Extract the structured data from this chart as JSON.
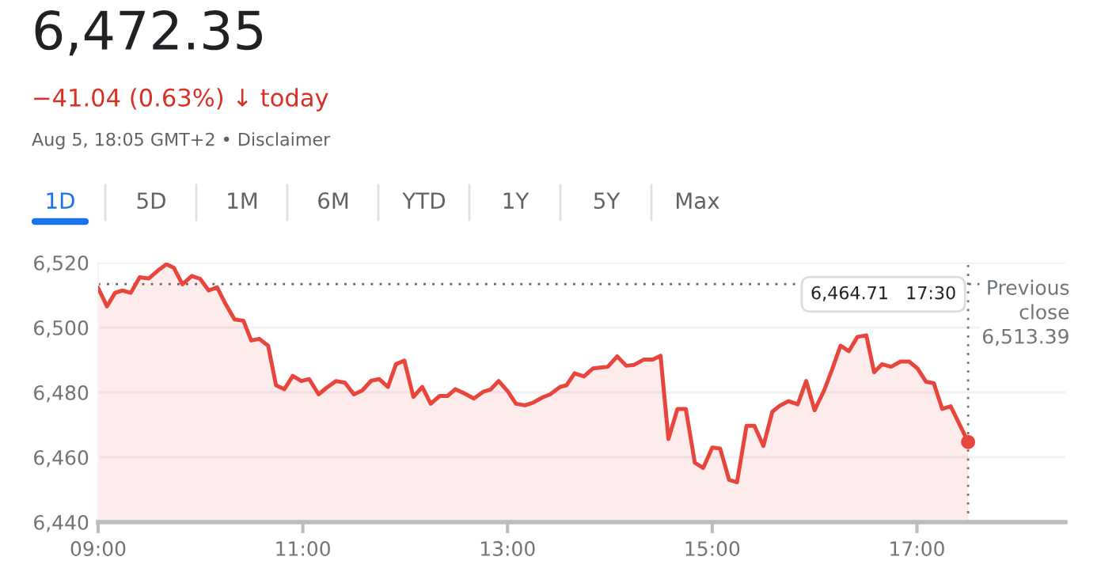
{
  "chart_data": {
    "type": "area",
    "title": "6,472.35",
    "subtitle": "−41.04 (0.63%) ↓ today",
    "annotations": [
      "Aug 5, 18:05 GMT+2 • Disclaimer",
      "6,464.71   17:30",
      "1D",
      "5D",
      "1M",
      "6M",
      "YTD",
      "1Y",
      "5Y",
      "Max"
    ],
    "series": [
      {
        "color": "#e8453c",
        "x": [
          9.0,
          9.087,
          9.165,
          9.236,
          9.319,
          9.406,
          9.493,
          9.586,
          9.668,
          9.74,
          9.823,
          9.915,
          9.997,
          10.08,
          10.162,
          10.244,
          10.332,
          10.419,
          10.496,
          10.573,
          10.661,
          10.738,
          10.82,
          10.902,
          10.985,
          11.062,
          11.154,
          11.231,
          11.324,
          11.411,
          11.499,
          11.581,
          11.668,
          11.745,
          11.832,
          11.91,
          11.992,
          12.08,
          12.167,
          12.249,
          12.337,
          12.414,
          12.491,
          12.578,
          12.671,
          12.763,
          12.835,
          12.913,
          13.005,
          13.082,
          13.17,
          13.247,
          13.339,
          13.416,
          13.515,
          13.577,
          13.655,
          13.747,
          13.835,
          13.979,
          14.072,
          14.16,
          14.237,
          14.33,
          14.418,
          14.495,
          14.572,
          14.66,
          14.742,
          14.83,
          14.912,
          15.0,
          15.077,
          15.165,
          15.242,
          15.335,
          15.412,
          15.5,
          15.588,
          15.665,
          15.747,
          15.835,
          15.918,
          16.0,
          16.093,
          16.17,
          16.253,
          16.335,
          16.418,
          16.505,
          16.582,
          16.66,
          16.747,
          16.84,
          16.923,
          17.005,
          17.088,
          17.165,
          17.247,
          17.33,
          17.5
        ],
        "values": [
          6512.2,
          6506.5,
          6510.7,
          6511.4,
          6510.7,
          6515.5,
          6515.1,
          6517.6,
          6519.5,
          6518.4,
          6513.3,
          6515.9,
          6515.0,
          6511.4,
          6512.4,
          6507.3,
          6502.5,
          6502.1,
          6496.0,
          6496.5,
          6494.4,
          6482.2,
          6481.0,
          6485.1,
          6483.5,
          6484.1,
          6479.4,
          6481.4,
          6483.5,
          6483.0,
          6479.4,
          6480.6,
          6483.6,
          6484.1,
          6481.7,
          6488.7,
          6489.8,
          6478.6,
          6481.7,
          6476.5,
          6478.9,
          6478.9,
          6481.0,
          6479.7,
          6478.1,
          6480.2,
          6480.9,
          6483.5,
          6480.2,
          6476.5,
          6476.0,
          6476.8,
          6478.4,
          6479.4,
          6481.7,
          6482.2,
          6485.9,
          6484.9,
          6487.4,
          6487.9,
          6491.1,
          6488.2,
          6488.5,
          6490.1,
          6490.1,
          6491.3,
          6465.6,
          6474.9,
          6474.9,
          6458.3,
          6456.7,
          6463.0,
          6462.7,
          6453.0,
          6452.3,
          6469.7,
          6469.7,
          6463.5,
          6474.1,
          6476.0,
          6477.3,
          6476.3,
          6483.5,
          6474.5,
          6480.6,
          6487.0,
          6494.4,
          6492.7,
          6497.1,
          6497.6,
          6486.2,
          6488.7,
          6487.9,
          6489.5,
          6489.5,
          6487.4,
          6483.3,
          6482.8,
          6474.9,
          6475.7,
          6464.71
        ]
      },
      {
        "type": "scatter",
        "color": "#e8453c",
        "x": [
          17.5
        ],
        "values": [
          6464.71
        ]
      }
    ],
    "xlim": [
      9,
      18.45
    ],
    "ylim": [
      6440,
      6520
    ],
    "xticks": [
      {
        "value": 9,
        "label": "09:00"
      },
      {
        "value": 11,
        "label": "11:00"
      },
      {
        "value": 13,
        "label": "13:00"
      },
      {
        "value": 15,
        "label": "15:00"
      },
      {
        "value": 17,
        "label": "17:00"
      }
    ],
    "yticks": [
      {
        "value": 6440,
        "label": "6,440"
      },
      {
        "value": 6460,
        "label": "6,460"
      },
      {
        "value": 6480,
        "label": "6,480"
      },
      {
        "value": 6500,
        "label": "6,500"
      },
      {
        "value": 6520,
        "label": "6,520"
      }
    ],
    "ref_lines": [
      {
        "axis": "y",
        "value": 6513.39,
        "label": "Previous\nclose\n6,513.39",
        "color": "#5f6368",
        "line_style": "dotted"
      },
      {
        "axis": "x",
        "value": 17.5,
        "color": "#70757a",
        "line_style": "dotted"
      }
    ],
    "grid": "y"
  }
}
